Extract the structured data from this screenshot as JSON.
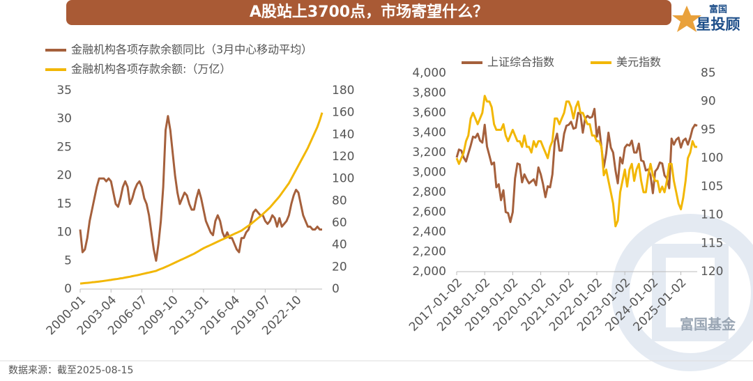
{
  "header": {
    "title": "A股站上3700点，市场寄望什么？"
  },
  "logo": {
    "top": "富国",
    "main": "星投顾"
  },
  "watermark": "富国基金",
  "footer": {
    "source": "数据来源：截至2025-08-15"
  },
  "chart_data": [
    {
      "type": "line",
      "legend": "top-left",
      "categories": [
        "2000-01",
        null,
        null,
        null,
        null,
        null,
        null,
        null,
        null,
        null,
        null,
        null,
        null,
        "2003-04",
        null,
        null,
        null,
        null,
        null,
        null,
        null,
        null,
        null,
        null,
        null,
        null,
        "2006-07",
        null,
        null,
        null,
        null,
        null,
        null,
        null,
        null,
        null,
        null,
        null,
        null,
        "2009-10",
        null,
        null,
        null,
        null,
        null,
        null,
        null,
        null,
        null,
        null,
        null,
        null,
        "2013-01",
        null,
        null,
        null,
        null,
        null,
        null,
        null,
        null,
        null,
        null,
        null,
        null,
        "2016-04",
        null,
        null,
        null,
        null,
        null,
        null,
        null,
        null,
        null,
        null,
        null,
        null,
        "2019-07",
        null,
        null,
        null,
        null,
        null,
        null,
        null,
        null,
        null,
        null,
        null,
        null,
        "2022-10",
        null,
        null,
        null,
        null,
        null,
        null,
        null,
        null,
        null,
        null,
        null
      ],
      "ylim": [
        0,
        35
      ],
      "yticks": [
        0,
        5,
        10,
        15,
        20,
        25,
        30,
        35
      ],
      "y2lim": [
        0,
        180
      ],
      "y2ticks": [
        0,
        20,
        40,
        60,
        80,
        100,
        120,
        140,
        160,
        180
      ],
      "series": [
        {
          "name": "金融机构各项存款余额同比（3月中心移动平均）",
          "color": "#a5603c",
          "values": [
            10.5,
            6.5,
            7,
            9,
            12,
            14,
            16,
            18,
            19.5,
            19.5,
            19.5,
            19,
            19.5,
            19,
            17,
            15,
            14.5,
            16,
            18,
            19,
            18,
            15,
            16,
            17.5,
            18.5,
            19,
            18,
            16,
            15,
            13,
            10,
            7,
            5,
            8,
            12,
            18,
            28,
            30.5,
            28,
            24,
            20,
            17,
            15,
            16,
            17,
            16.5,
            15,
            14,
            14,
            16,
            17.5,
            16,
            14,
            12,
            11,
            10,
            9.5,
            12,
            13,
            12,
            10,
            9,
            10,
            9,
            9,
            8,
            7,
            6.5,
            9,
            9,
            10,
            10.5,
            12,
            13.5,
            14,
            13.5,
            13,
            13,
            12,
            11.5,
            12,
            13,
            12.5,
            11,
            12.5,
            11,
            11.5,
            12,
            13,
            15,
            16.5,
            17.5,
            17,
            15,
            13,
            12,
            11,
            11,
            10.5,
            10.5,
            11,
            10.5,
            10.5
          ]
        },
        {
          "name": "金融机构各项存款余额:（万亿）",
          "color": "#f2b705",
          "axis": "y2",
          "values": [
            5,
            5.2,
            5.4,
            5.6,
            5.8,
            6.1,
            6.3,
            6.6,
            6.8,
            7.1,
            7.4,
            7.7,
            8,
            8.3,
            8.7,
            9,
            9.3,
            9.7,
            10,
            10.4,
            10.8,
            11.2,
            11.7,
            12.1,
            12.5,
            13,
            13.5,
            14,
            14.5,
            15,
            15.5,
            16,
            16.5,
            17.4,
            18.3,
            19.1,
            20,
            21,
            22,
            23,
            24,
            25,
            26,
            27,
            28,
            29,
            30,
            31,
            32,
            33.3,
            34.5,
            35.8,
            37,
            38,
            39,
            40,
            41,
            42,
            43,
            44,
            45,
            46,
            47,
            48,
            49,
            50,
            51,
            52,
            53,
            54.5,
            56,
            57.5,
            59,
            60.8,
            62.5,
            64.3,
            66,
            68,
            70,
            72,
            74,
            76.5,
            79,
            81.5,
            84,
            87,
            90,
            93,
            96,
            100,
            104,
            108,
            112,
            116,
            120,
            124,
            128,
            132.8,
            137.5,
            142.3,
            147,
            153,
            160
          ]
        }
      ]
    },
    {
      "type": "line",
      "legend": "top",
      "categories": [
        "2017-01-02",
        null,
        null,
        null,
        null,
        null,
        null,
        null,
        null,
        null,
        null,
        null,
        "2018-01-02",
        null,
        null,
        null,
        null,
        null,
        null,
        null,
        null,
        null,
        null,
        null,
        "2019-01-02",
        null,
        null,
        null,
        null,
        null,
        null,
        null,
        null,
        null,
        null,
        null,
        "2020-01-02",
        null,
        null,
        null,
        null,
        null,
        null,
        null,
        null,
        null,
        null,
        null,
        "2021-01-02",
        null,
        null,
        null,
        null,
        null,
        null,
        null,
        null,
        null,
        null,
        null,
        "2022-01-02",
        null,
        null,
        null,
        null,
        null,
        null,
        null,
        null,
        null,
        null,
        null,
        "2023-01-02",
        null,
        null,
        null,
        null,
        null,
        null,
        null,
        null,
        null,
        null,
        null,
        "2024-01-02",
        null,
        null,
        null,
        null,
        null,
        null,
        null,
        null,
        null,
        null,
        null,
        "2025-01-02",
        null,
        null,
        null,
        null,
        null,
        null,
        null
      ],
      "ylim": [
        2000,
        4000
      ],
      "yticks": [
        {
          "value": 2000,
          "label": "2,000"
        },
        {
          "value": 2200,
          "label": "2,200"
        },
        {
          "value": 2400,
          "label": "2,400"
        },
        {
          "value": 2600,
          "label": "2,600"
        },
        {
          "value": 2800,
          "label": "2,800"
        },
        {
          "value": 3000,
          "label": "3,000"
        },
        {
          "value": 3200,
          "label": "3,200"
        },
        {
          "value": 3400,
          "label": "3,400"
        },
        {
          "value": 3600,
          "label": "3,600"
        },
        {
          "value": 3800,
          "label": "3,800"
        },
        {
          "value": 4000,
          "label": "4,000"
        }
      ],
      "y2lim": [
        120,
        85
      ],
      "y2ticks": [
        85,
        90,
        95,
        100,
        105,
        110,
        115,
        120
      ],
      "series": [
        {
          "name": "上证综合指数",
          "color": "#a5603c",
          "values": [
            3150,
            3230,
            3220,
            3150,
            3110,
            3190,
            3270,
            3360,
            3350,
            3390,
            3320,
            3300,
            3480,
            3260,
            3170,
            3080,
            3100,
            2850,
            2880,
            2720,
            2820,
            2600,
            2590,
            2500,
            2600,
            2940,
            3090,
            3080,
            2900,
            2980,
            2930,
            2890,
            2910,
            2930,
            2870,
            3050,
            2980,
            2880,
            2750,
            2860,
            2850,
            2980,
            3310,
            3390,
            3220,
            3220,
            3390,
            3470,
            3480,
            3510,
            3440,
            3450,
            3600,
            3590,
            3400,
            3540,
            3570,
            3550,
            3560,
            3640,
            3360,
            3460,
            3250,
            3050,
            3190,
            3400,
            3250,
            3200,
            3020,
            2890,
            3150,
            3090,
            3250,
            3280,
            3270,
            3320,
            3200,
            3200,
            3290,
            3120,
            3110,
            3020,
            3030,
            2970,
            2790,
            3010,
            3040,
            3100,
            3090,
            2970,
            2940,
            2840,
            3340,
            3280,
            3330,
            3350,
            3250,
            3320,
            3340,
            3280,
            3350,
            3440,
            3480,
            3470
          ]
        },
        {
          "name": "美元指数",
          "color": "#f2b705",
          "axis": "y2",
          "values": [
            100,
            101,
            100,
            99,
            97,
            96,
            93,
            92,
            93,
            94,
            93,
            92,
            89,
            90,
            90,
            91,
            94,
            95,
            95,
            95,
            94,
            96,
            97,
            96,
            95,
            96,
            97,
            97,
            98,
            96,
            98,
            98,
            99,
            97,
            98,
            97,
            97,
            98,
            99,
            100,
            98,
            97,
            93,
            93,
            94,
            93,
            92,
            90,
            90,
            91,
            93,
            91,
            90,
            92,
            92,
            93,
            94,
            94,
            96,
            96,
            97,
            97,
            98,
            103,
            102,
            104,
            106,
            108,
            112,
            111,
            106,
            104,
            102,
            105,
            102,
            101,
            104,
            102,
            101,
            104,
            106,
            106,
            103,
            101,
            103,
            104,
            104,
            106,
            105,
            106,
            104,
            101,
            101,
            104,
            106,
            108,
            109,
            107,
            104,
            100,
            99,
            97,
            98,
            98
          ]
        }
      ]
    }
  ]
}
